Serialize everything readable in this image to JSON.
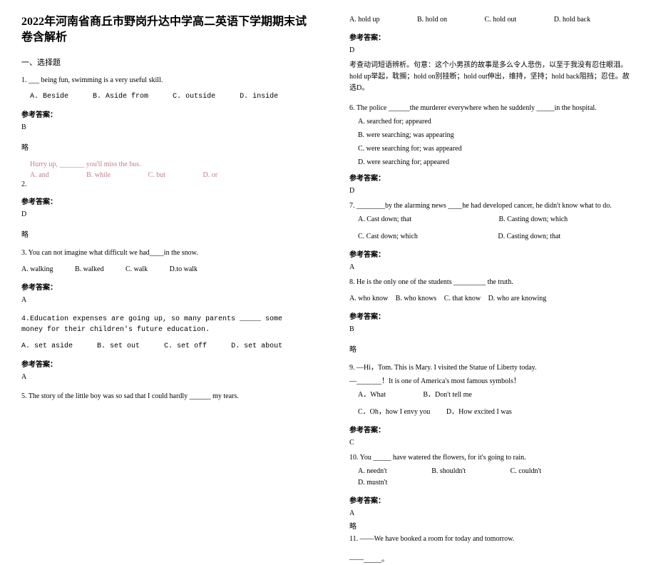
{
  "title": "2022年河南省商丘市野岗升达中学高二英语下学期期末试卷含解析",
  "section1": "一、选择题",
  "q1": {
    "stem": "1. ___ being fun, swimming is a very useful skill.",
    "opts": [
      "A. Beside",
      "B. Aside from",
      "C. outside",
      "D. inside"
    ],
    "ansLabel": "参考答案：",
    "ans": "B",
    "brief": "略"
  },
  "q2": {
    "pink": "Hurry up, _______ you'll miss the bus.",
    "opts": [
      "A. and",
      "B. while",
      "C. but",
      "D. or"
    ],
    "num": "2.",
    "ansLabel": "参考答案：",
    "ans": "D",
    "brief": "略"
  },
  "q3": {
    "stem": "3. You can not imagine what difficult we had____in the snow.",
    "opts": [
      "A. walking",
      "B. walked",
      "C. walk",
      "D.to walk"
    ],
    "ansLabel": "参考答案：",
    "ans": "A"
  },
  "q4": {
    "stem": "4.Education expenses are going up, so many parents _____ some money for their children's future education.",
    "opts": [
      "A. set aside",
      "B. set out",
      "C. set off",
      "D. set about"
    ],
    "ansLabel": "参考答案：",
    "ans": "A"
  },
  "q5": {
    "stem": "5. The story of the little boy was so sad that I could hardly ______ my tears."
  },
  "q5opts": [
    "A. hold up",
    "B. hold on",
    "C. hold out",
    "D. hold back"
  ],
  "q5ansLabel": "参考答案：",
  "q5ans": "D",
  "q5exp": "考查动词短语辨析。句意：这个小男孩的故事是多么令人悲伤，以至于我没有忍住眼泪。hold up举起，耽搁；hold on别挂断；hold out伸出，维持，坚持；hold back阻挡；忍住。故选D。",
  "q6": {
    "stem": "6. The police ______the murderer everywhere when he suddenly _____in the hospital.",
    "opts": [
      "A. searched for; appeared",
      "B. were searching; was appearing",
      "C. were searching for; was appeared",
      "D. were searching for; appeared"
    ],
    "ansLabel": "参考答案：",
    "ans": "D"
  },
  "q7": {
    "stem": "7. ________by the alarming news ____he had developed cancer, he didn't know what to do.",
    "opts": [
      "A. Cast down; that",
      "B. Casting down; which",
      "C. Cast down; which",
      "D. Casting down; that"
    ],
    "ansLabel": "参考答案：",
    "ans": "A"
  },
  "q8": {
    "stem": "8. He is the only one of the students _________ the truth.",
    "opts": [
      "A. who know",
      "B. who knows",
      "C. that know",
      "D. who are knowing"
    ],
    "ansLabel": "参考答案：",
    "ans": "B",
    "brief": "略"
  },
  "q9": {
    "stem1": "9. —Hi，Tom. This is Mary. I visited the Statue of Liberty today.",
    "stem2": "   —_______！It is one of America's most famous symbols！",
    "opts": [
      "A．What",
      "B．Don't tell me",
      "C．Oh，how I envy you",
      "D．How excited I was"
    ],
    "ansLabel": "参考答案：",
    "ans": "C"
  },
  "q10": {
    "stem": "10. You _____ have watered the flowers, for it's going to rain.",
    "opts": [
      "A. needn't",
      "B. shouldn't",
      "C. couldn't",
      "D. mustn't"
    ],
    "ansLabel": "参考答案：",
    "ans": "A",
    "brief": "略"
  },
  "q11": {
    "stem": "11. ——We have booked a room for today and tomorrow.",
    "stem2": "——_____。"
  }
}
